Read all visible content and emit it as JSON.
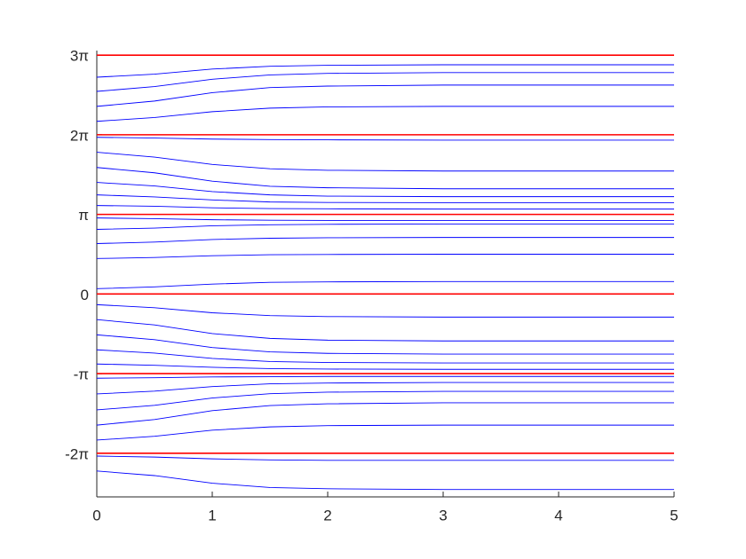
{
  "chart_data": {
    "type": "line",
    "x": [
      0,
      0.5,
      1,
      1.5,
      2,
      3,
      5
    ],
    "xlim": [
      0,
      5
    ],
    "xticks": [
      0,
      1,
      2,
      3,
      4,
      5
    ],
    "ylim": [
      -8,
      9.6
    ],
    "yticks": [
      {
        "value": -6.2832,
        "label": "-2π"
      },
      {
        "value": -3.1416,
        "label": "-π"
      },
      0,
      {
        "value": 3.1416,
        "label": "π"
      },
      {
        "value": 6.2832,
        "label": "2π"
      },
      {
        "value": 9.4248,
        "label": "3π"
      }
    ],
    "series": [
      {
        "color": "#0000ff",
        "values": [
          8.55,
          8.67,
          8.87,
          8.98,
          9.02,
          9.04,
          9.04
        ]
      },
      {
        "color": "#0000ff",
        "values": [
          7.99,
          8.18,
          8.47,
          8.64,
          8.7,
          8.73,
          8.73
        ]
      },
      {
        "color": "#0000ff",
        "values": [
          7.4,
          7.61,
          7.94,
          8.14,
          8.2,
          8.24,
          8.24
        ]
      },
      {
        "color": "#0000ff",
        "values": [
          6.81,
          6.96,
          7.19,
          7.33,
          7.38,
          7.4,
          7.4
        ]
      },
      {
        "color": "#0000ff",
        "values": [
          6.18,
          6.15,
          6.11,
          6.09,
          6.08,
          6.07,
          6.07
        ]
      },
      {
        "color": "#0000ff",
        "values": [
          5.59,
          5.4,
          5.11,
          4.94,
          4.88,
          4.85,
          4.85
        ]
      },
      {
        "color": "#0000ff",
        "values": [
          4.99,
          4.78,
          4.45,
          4.25,
          4.19,
          4.15,
          4.15
        ]
      },
      {
        "color": "#0000ff",
        "values": [
          4.4,
          4.26,
          4.04,
          3.91,
          3.86,
          3.84,
          3.84
        ]
      },
      {
        "color": "#0000ff",
        "values": [
          3.91,
          3.83,
          3.71,
          3.63,
          3.61,
          3.6,
          3.6
        ]
      },
      {
        "color": "#0000ff",
        "values": [
          3.49,
          3.46,
          3.4,
          3.37,
          3.36,
          3.35,
          3.35
        ]
      },
      {
        "color": "#0000ff",
        "values": [
          3.0,
          2.97,
          2.93,
          2.91,
          2.9,
          2.9,
          2.9
        ]
      },
      {
        "color": "#0000ff",
        "values": [
          2.55,
          2.6,
          2.69,
          2.73,
          2.75,
          2.76,
          2.76
        ]
      },
      {
        "color": "#0000ff",
        "values": [
          1.99,
          2.05,
          2.15,
          2.2,
          2.22,
          2.23,
          2.23
        ]
      },
      {
        "color": "#0000ff",
        "values": [
          1.4,
          1.44,
          1.51,
          1.55,
          1.56,
          1.57,
          1.57
        ]
      },
      {
        "color": "#0000ff",
        "values": [
          0.21,
          0.28,
          0.39,
          0.46,
          0.48,
          0.49,
          0.49
        ]
      },
      {
        "color": "#0000ff",
        "values": [
          -0.42,
          -0.54,
          -0.74,
          -0.85,
          -0.89,
          -0.91,
          -0.91
        ]
      },
      {
        "color": "#0000ff",
        "values": [
          -1.01,
          -1.22,
          -1.56,
          -1.75,
          -1.82,
          -1.85,
          -1.85
        ]
      },
      {
        "color": "#0000ff",
        "values": [
          -1.61,
          -1.8,
          -2.11,
          -2.28,
          -2.34,
          -2.37,
          -2.37
        ]
      },
      {
        "color": "#0000ff",
        "values": [
          -2.2,
          -2.33,
          -2.54,
          -2.66,
          -2.7,
          -2.72,
          -2.72
        ]
      },
      {
        "color": "#0000ff",
        "values": [
          -2.76,
          -2.81,
          -2.89,
          -2.94,
          -2.96,
          -2.97,
          -2.97
        ]
      },
      {
        "color": "#0000ff",
        "values": [
          -3.32,
          -3.3,
          -3.27,
          -3.26,
          -3.25,
          -3.25,
          -3.25
        ]
      },
      {
        "color": "#0000ff",
        "values": [
          -3.94,
          -3.83,
          -3.65,
          -3.54,
          -3.51,
          -3.49,
          -3.49
        ]
      },
      {
        "color": "#0000ff",
        "values": [
          -4.57,
          -4.39,
          -4.1,
          -3.93,
          -3.87,
          -3.84,
          -3.84
        ]
      },
      {
        "color": "#0000ff",
        "values": [
          -5.17,
          -4.95,
          -4.6,
          -4.4,
          -4.33,
          -4.29,
          -4.29
        ]
      },
      {
        "color": "#0000ff",
        "values": [
          -5.76,
          -5.61,
          -5.37,
          -5.24,
          -5.19,
          -5.17,
          -5.17
        ]
      },
      {
        "color": "#0000ff",
        "values": [
          -6.39,
          -6.43,
          -6.5,
          -6.54,
          -6.56,
          -6.56,
          -6.56
        ]
      },
      {
        "color": "#0000ff",
        "values": [
          -6.98,
          -7.16,
          -7.46,
          -7.63,
          -7.68,
          -7.71,
          -7.71
        ]
      },
      {
        "color": "#ff0000",
        "values": [
          9.42,
          9.42,
          9.42,
          9.42,
          9.42,
          9.42,
          9.42
        ]
      },
      {
        "color": "#ff0000",
        "values": [
          6.28,
          6.28,
          6.28,
          6.28,
          6.28,
          6.28,
          6.28
        ]
      },
      {
        "color": "#ff0000",
        "values": [
          3.14,
          3.14,
          3.14,
          3.14,
          3.14,
          3.14,
          3.14
        ]
      },
      {
        "color": "#ff0000",
        "values": [
          0,
          0,
          0,
          0,
          0,
          0,
          0
        ]
      },
      {
        "color": "#ff0000",
        "values": [
          -3.14,
          -3.14,
          -3.14,
          -3.14,
          -3.14,
          -3.14,
          -3.14
        ]
      },
      {
        "color": "#ff0000",
        "values": [
          -6.28,
          -6.28,
          -6.28,
          -6.28,
          -6.28,
          -6.28,
          -6.28
        ]
      }
    ]
  }
}
